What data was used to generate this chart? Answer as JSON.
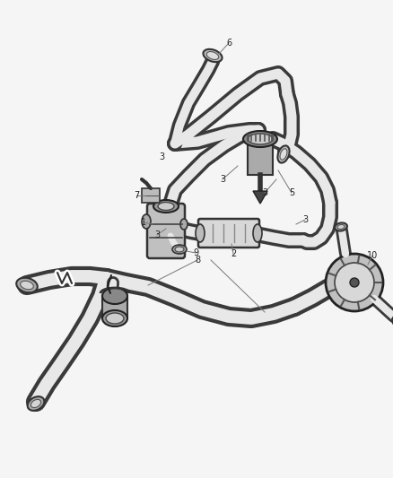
{
  "bg_color": "#f5f5f5",
  "line_color": "#444444",
  "label_color": "#222222",
  "label_fontsize": 7.0,
  "figsize": [
    4.38,
    5.33
  ],
  "dpi": 100
}
